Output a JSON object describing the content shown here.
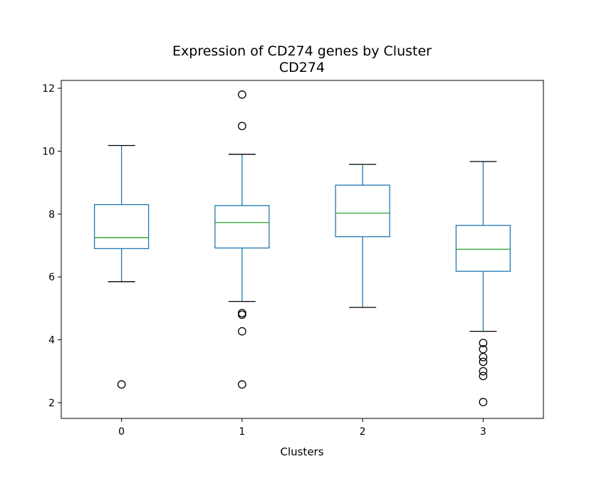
{
  "chart_data": {
    "type": "box",
    "title": "Expression of CD274 genes by Cluster",
    "subtitle": "CD274",
    "xlabel": "Clusters",
    "ylabel": "",
    "categories": [
      "0",
      "1",
      "2",
      "3"
    ],
    "ylim": [
      1.5,
      12.25
    ],
    "yticks": [
      2,
      4,
      6,
      8,
      10,
      12
    ],
    "grid": false,
    "boxes": [
      {
        "category": "0",
        "whisker_low": 5.85,
        "q1": 6.9,
        "median": 7.25,
        "q3": 8.3,
        "whisker_high": 10.18,
        "outliers": [
          2.58
        ]
      },
      {
        "category": "1",
        "whisker_low": 5.22,
        "q1": 6.92,
        "median": 7.73,
        "q3": 8.27,
        "whisker_high": 9.9,
        "outliers": [
          11.8,
          10.8,
          4.85,
          4.8,
          4.27,
          2.58
        ]
      },
      {
        "category": "2",
        "whisker_low": 5.03,
        "q1": 7.28,
        "median": 8.03,
        "q3": 8.92,
        "whisker_high": 9.58,
        "outliers": []
      },
      {
        "category": "3",
        "whisker_low": 4.27,
        "q1": 6.18,
        "median": 6.88,
        "q3": 7.64,
        "whisker_high": 9.67,
        "outliers": [
          3.9,
          3.7,
          3.45,
          3.3,
          3.0,
          2.85,
          2.02
        ]
      }
    ],
    "colors": {
      "box": "#1f77b4",
      "median": "#2ca02c",
      "whisker_cap": "#000000",
      "outlier": "#000000",
      "axes": "#000000"
    }
  }
}
